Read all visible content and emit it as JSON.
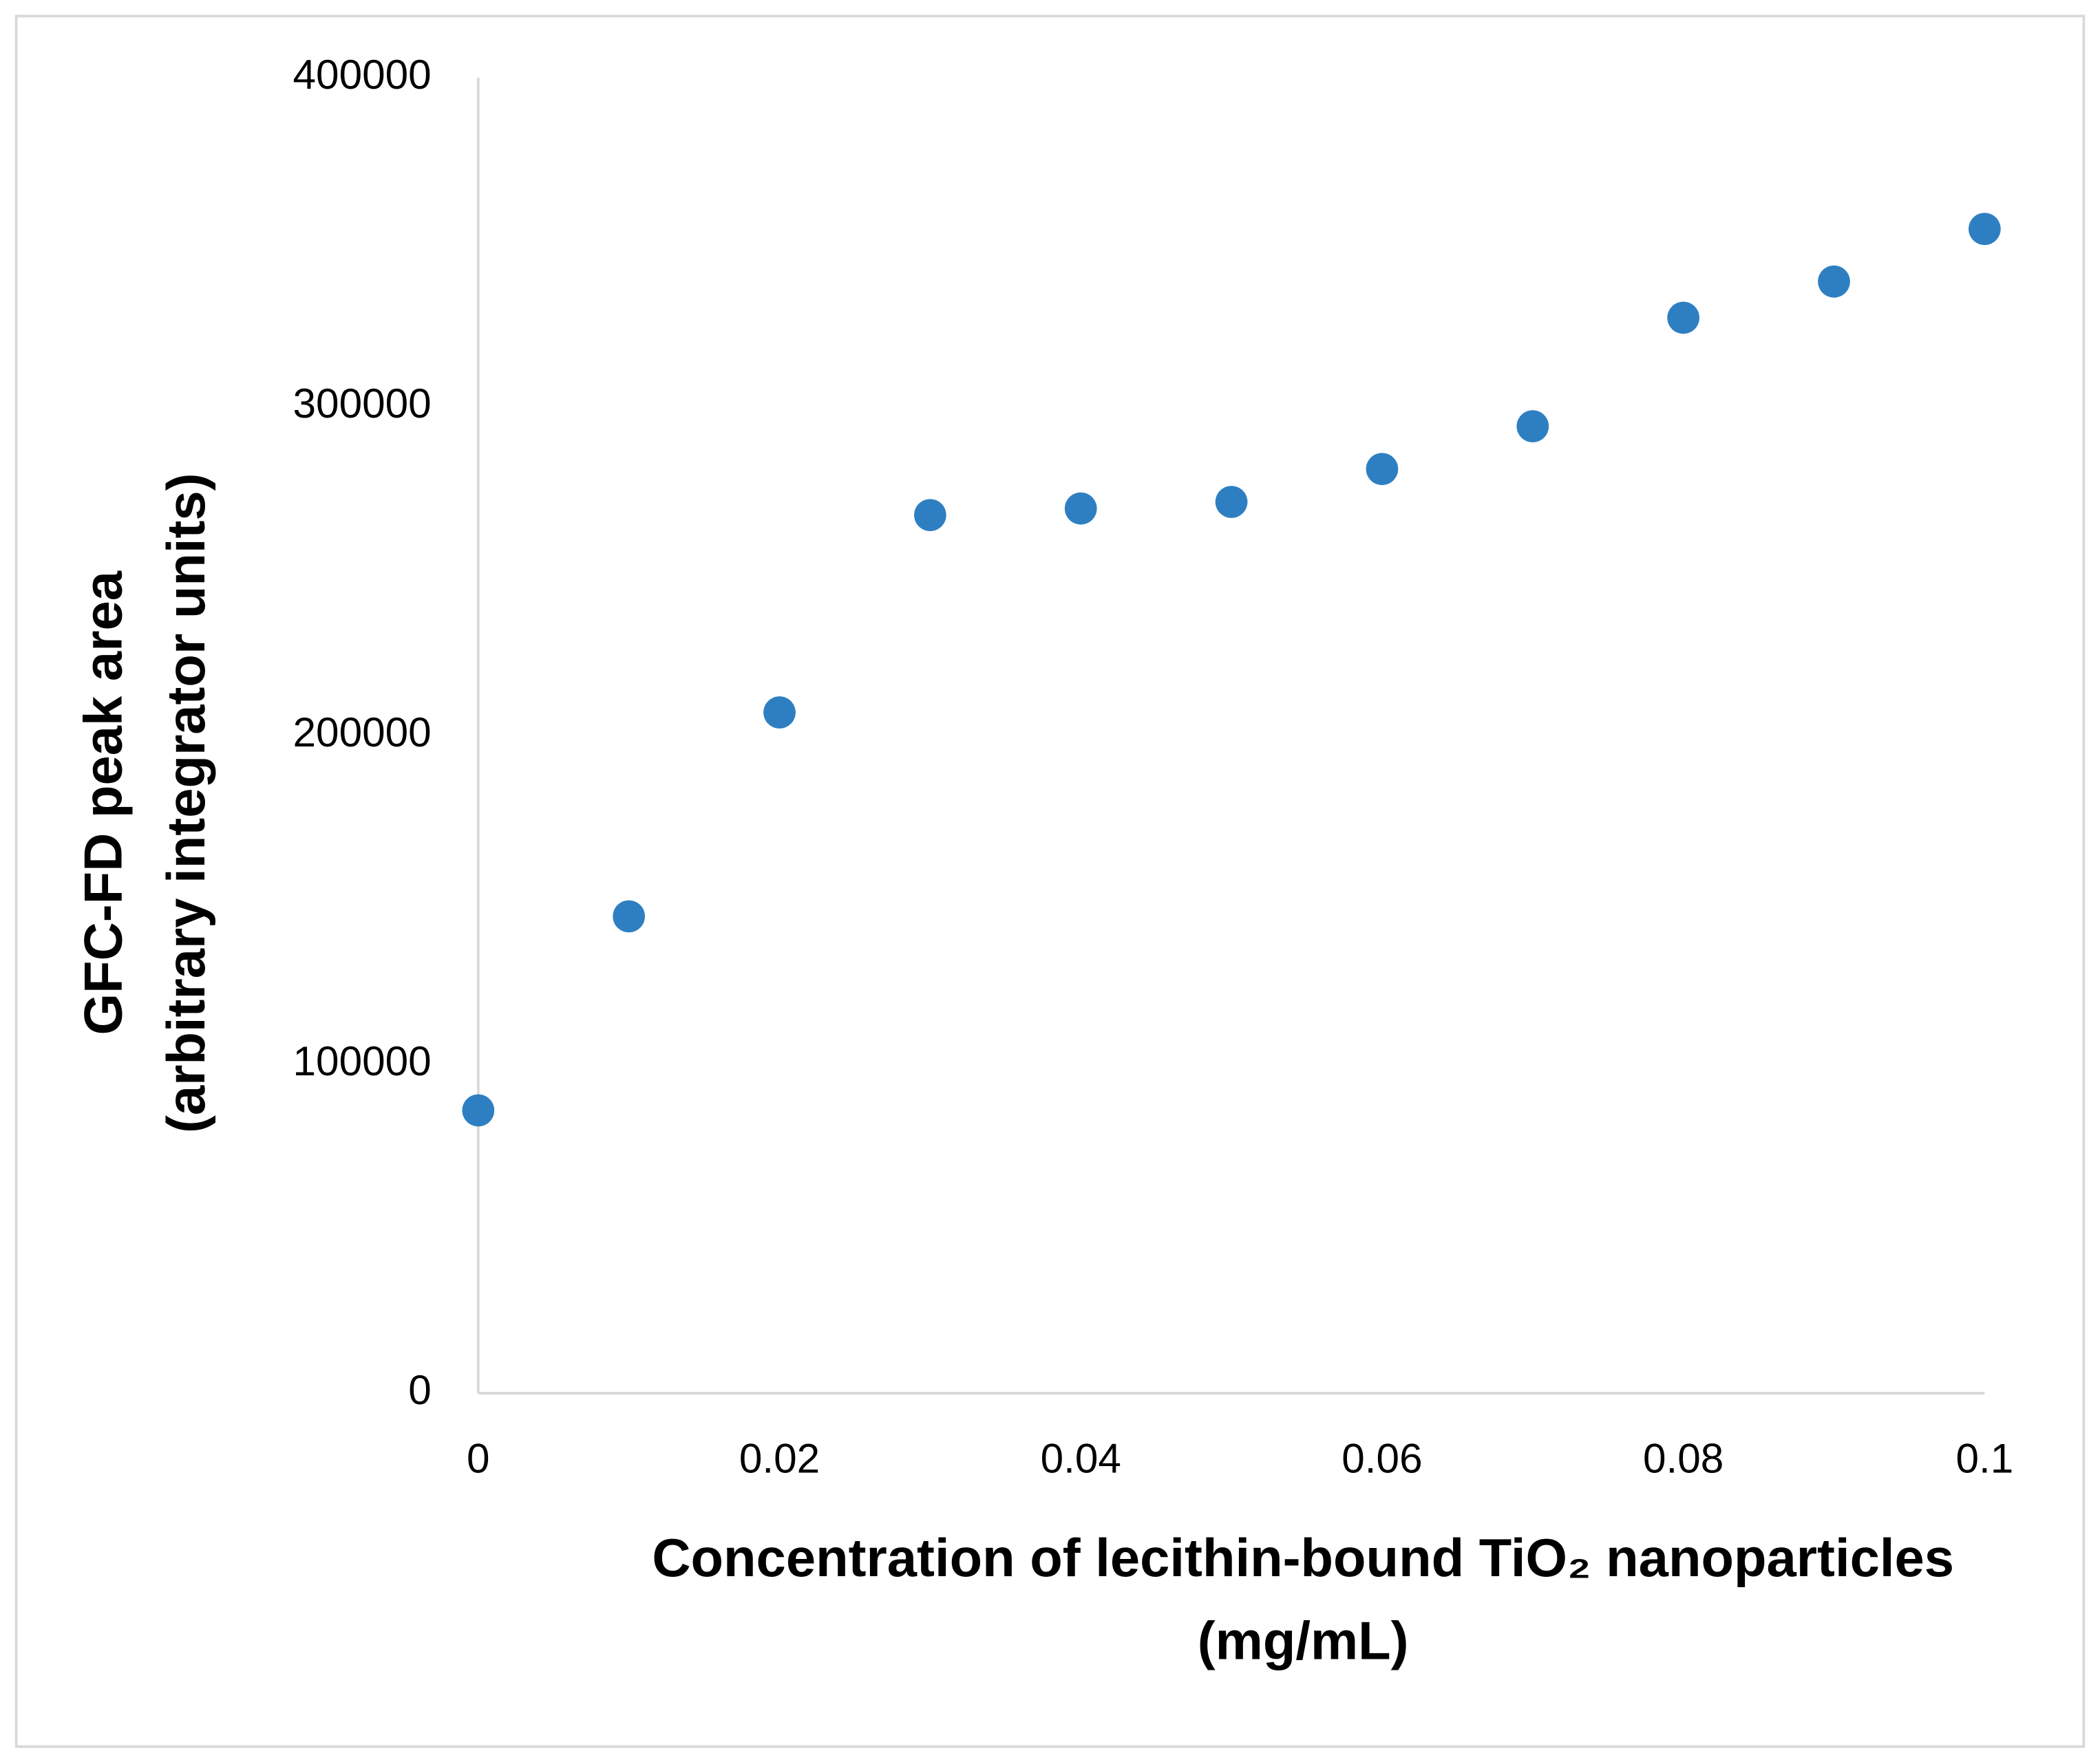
{
  "chart_data": {
    "type": "scatter",
    "xlabel": [
      "Concentration of lecithin-bound TiO₂ nanoparticles",
      "(mg/mL)"
    ],
    "ylabel": [
      "GFC-FD peak area",
      "(arbitrary integrator units)"
    ],
    "series": [
      {
        "name": "GFC-FD peak area",
        "color": "#2e7fc1",
        "x": [
          0,
          0.01,
          0.02,
          0.03,
          0.04,
          0.05,
          0.06,
          0.07,
          0.08,
          0.09,
          0.1
        ],
        "values": [
          86000,
          145000,
          207000,
          267000,
          269000,
          271000,
          281000,
          294000,
          327000,
          338000,
          354000
        ]
      }
    ],
    "xlim": [
      0,
      0.1
    ],
    "xticks": [
      0,
      0.02,
      0.04,
      0.06,
      0.08,
      0.1
    ],
    "ylim": [
      0,
      400000
    ],
    "yticks": [
      0,
      100000,
      200000,
      300000,
      400000
    ],
    "grid": false,
    "legend": false
  }
}
